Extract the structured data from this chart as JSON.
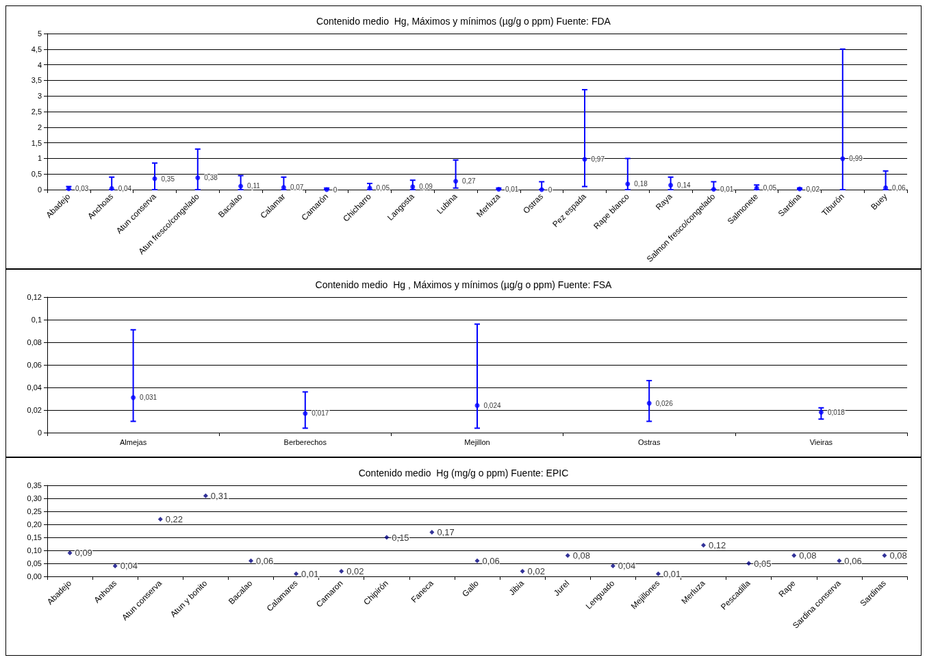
{
  "chart_data": [
    {
      "type": "scatter",
      "title": "Contenido medio  Hg, Máximos y mínimos (µg/g o ppm) Fuente: FDA",
      "categories": [
        "Abadejo",
        "Anchoas",
        "Atun conserva",
        "Atun fresco/congelado",
        "Bacalao",
        "Calamar",
        "Camarón",
        "Chicharro",
        "Langosta",
        "Lubina",
        "Merluza",
        "Ostras",
        "Pez espada",
        "Rape blanco",
        "Raya",
        "Salmon fresco/congelado",
        "Salmonete",
        "Sardina",
        "Tiburón",
        "Buey"
      ],
      "series": [
        {
          "color": "#0000ff",
          "values": [
            0.03,
            0.04,
            0.35,
            0.38,
            0.11,
            0.07,
            0,
            0.05,
            0.09,
            0.27,
            0.01,
            0,
            0.97,
            0.18,
            0.14,
            0.01,
            0.05,
            0.02,
            0.99,
            0.06
          ],
          "value_labels": [
            "0,03",
            "0,04",
            "0,35",
            "0,38",
            "0,11",
            "0,07",
            "0",
            "0,05",
            "0,09",
            "0,27",
            "0,01",
            "0",
            "0,97",
            "0,18",
            "0,14",
            "0,01",
            "0,05",
            "0,02",
            "0,99",
            "0,06"
          ],
          "errors": [
            [
              0,
              0.1
            ],
            [
              0,
              0.4
            ],
            [
              0,
              0.85
            ],
            [
              0,
              1.3
            ],
            [
              0,
              0.45
            ],
            [
              0,
              0.4
            ],
            [
              0,
              0.05
            ],
            [
              0,
              0.2
            ],
            [
              0,
              0.3
            ],
            [
              0.05,
              0.95
            ],
            [
              0,
              0.05
            ],
            [
              0,
              0.25
            ],
            [
              0.1,
              3.2
            ],
            [
              0,
              1.0
            ],
            [
              0,
              0.4
            ],
            [
              0,
              0.25
            ],
            [
              0,
              0.15
            ],
            [
              0,
              0.05
            ],
            [
              0,
              4.5
            ],
            [
              0,
              0.6
            ]
          ]
        }
      ],
      "marker": "circle",
      "grid": "y",
      "ylim": [
        0,
        5
      ],
      "yticks": [
        0,
        {
          "value": 0.5,
          "label": "0,5"
        },
        1,
        {
          "value": 1.5,
          "label": "1,5"
        },
        2,
        {
          "value": 2.5,
          "label": "2,5"
        },
        3,
        {
          "value": 3.5,
          "label": "3,5"
        },
        4,
        {
          "value": 4.5,
          "label": "4,5"
        },
        5
      ]
    },
    {
      "type": "scatter",
      "title": "Contenido medio  Hg , Máximos y mínimos (µg/g o ppm) Fuente: FSA",
      "categories": [
        "Almejas",
        "Berberechos",
        "Mejillon",
        "Ostras",
        "Vieiras"
      ],
      "series": [
        {
          "color": "#0000ff",
          "values": [
            0.031,
            0.017,
            0.024,
            0.026,
            0.018
          ],
          "value_labels": [
            "0,031",
            "0,017",
            "0,024",
            "0,026",
            "0,018"
          ],
          "errors": [
            [
              0.01,
              0.091
            ],
            [
              0.004,
              0.036
            ],
            [
              0.004,
              0.096
            ],
            [
              0.01,
              0.046
            ],
            [
              0.012,
              0.022
            ]
          ]
        }
      ],
      "marker": "circle",
      "grid": "y",
      "ylim": [
        0,
        0.12
      ],
      "yticks": [
        0,
        {
          "value": 0.02,
          "label": "0,02"
        },
        {
          "value": 0.04,
          "label": "0,04"
        },
        {
          "value": 0.06,
          "label": "0,06"
        },
        {
          "value": 0.08,
          "label": "0,08"
        },
        {
          "value": 0.1,
          "label": "0,1"
        },
        {
          "value": 0.12,
          "label": "0,12"
        }
      ]
    },
    {
      "type": "scatter",
      "title": "Contenido medio  Hg (mg/g o ppm) Fuente: EPIC",
      "categories": [
        "Abadejo",
        "Anhoas",
        "Atun conserva",
        "Atun y bonito",
        "Bacalao",
        "Calamares",
        "Camaron",
        "Chipirón",
        "Faneca",
        "Gallo",
        "Jibia",
        "Jurel",
        "Lenguado",
        "Mejillones",
        "Merluza",
        "Pescadilla",
        "Rape",
        "Sardina conserva",
        "Sardinas"
      ],
      "series": [
        {
          "color": "#000080",
          "values": [
            0.09,
            0.04,
            0.22,
            0.31,
            0.06,
            0.01,
            0.02,
            0.15,
            0.17,
            0.06,
            0.02,
            0.08,
            0.04,
            0.01,
            0.12,
            0.05,
            0.08,
            0.06,
            0.08
          ],
          "value_labels": [
            "0,09",
            "0,04",
            "0,22",
            "0,31",
            "0,06",
            "0,01",
            "0,02",
            "0,15",
            "0,17",
            "0,06",
            "0,02",
            "0,08",
            "0,04",
            "0,01",
            "0,12",
            "0,05",
            "0,08",
            "0,06",
            "0,08"
          ]
        }
      ],
      "marker": "diamond",
      "grid": "y",
      "ylim": [
        0,
        0.35
      ],
      "yticks": [
        {
          "value": 0,
          "label": "0,00"
        },
        {
          "value": 0.05,
          "label": "0,05"
        },
        {
          "value": 0.1,
          "label": "0,10"
        },
        {
          "value": 0.15,
          "label": "0,15"
        },
        {
          "value": 0.2,
          "label": "0,20"
        },
        {
          "value": 0.25,
          "label": "0,25"
        },
        {
          "value": 0.3,
          "label": "0,30"
        },
        {
          "value": 0.35,
          "label": "0,35"
        }
      ]
    }
  ]
}
